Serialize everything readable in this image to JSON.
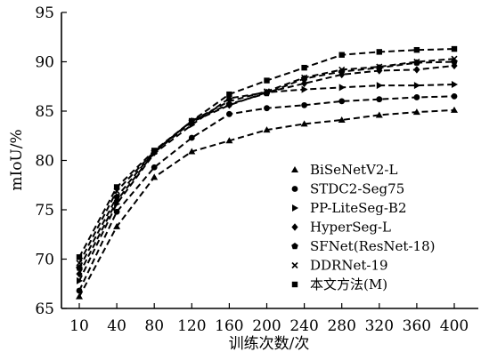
{
  "chart_data": {
    "type": "line",
    "xlabel": "训练次数/次",
    "ylabel": "mIoU/%",
    "x": [
      10,
      40,
      80,
      120,
      160,
      200,
      240,
      280,
      320,
      360,
      400
    ],
    "x_tick_labels": [
      "10",
      "40",
      "80",
      "120",
      "160",
      "200",
      "240",
      "280",
      "320",
      "360",
      "400"
    ],
    "y_ticks": [
      65,
      70,
      75,
      80,
      85,
      90,
      95
    ],
    "y_tick_labels": [
      "65",
      "70",
      "75",
      "80",
      "85",
      "90",
      "95"
    ],
    "ylim": [
      65,
      95
    ],
    "grid": false,
    "legend_position": "bottom-right",
    "series": [
      {
        "name": "BiSeNetV2-L",
        "marker": "triangle-up",
        "values": [
          66.2,
          73.3,
          78.3,
          80.9,
          82.0,
          83.1,
          83.7,
          84.1,
          84.6,
          84.9,
          85.1
        ]
      },
      {
        "name": "STDC2-Seg75",
        "marker": "circle",
        "values": [
          66.8,
          74.8,
          79.3,
          82.3,
          84.7,
          85.3,
          85.6,
          86.0,
          86.2,
          86.4,
          86.5
        ]
      },
      {
        "name": "PP-LiteSeg-B2",
        "marker": "triangle-right",
        "values": [
          67.8,
          75.6,
          80.7,
          83.6,
          86.3,
          86.9,
          87.2,
          87.4,
          87.6,
          87.6,
          87.7
        ]
      },
      {
        "name": "HyperSeg-L",
        "marker": "diamond",
        "values": [
          68.5,
          75.9,
          80.8,
          83.9,
          85.6,
          86.9,
          87.8,
          88.7,
          89.1,
          89.2,
          89.6
        ]
      },
      {
        "name": "SFNet(ResNet-18)",
        "marker": "pentagon",
        "values": [
          69.1,
          76.3,
          80.9,
          84.0,
          85.7,
          86.8,
          88.3,
          89.0,
          89.4,
          89.9,
          90.0
        ]
      },
      {
        "name": "DDRNet-19",
        "marker": "x",
        "values": [
          69.6,
          76.9,
          80.9,
          84.0,
          86.0,
          87.0,
          88.4,
          89.2,
          89.5,
          90.0,
          90.3
        ]
      },
      {
        "name": "本文方法(M)",
        "marker": "square",
        "values": [
          70.2,
          77.3,
          81.0,
          84.0,
          86.7,
          88.1,
          89.4,
          90.7,
          91.0,
          91.2,
          91.3
        ]
      }
    ]
  }
}
